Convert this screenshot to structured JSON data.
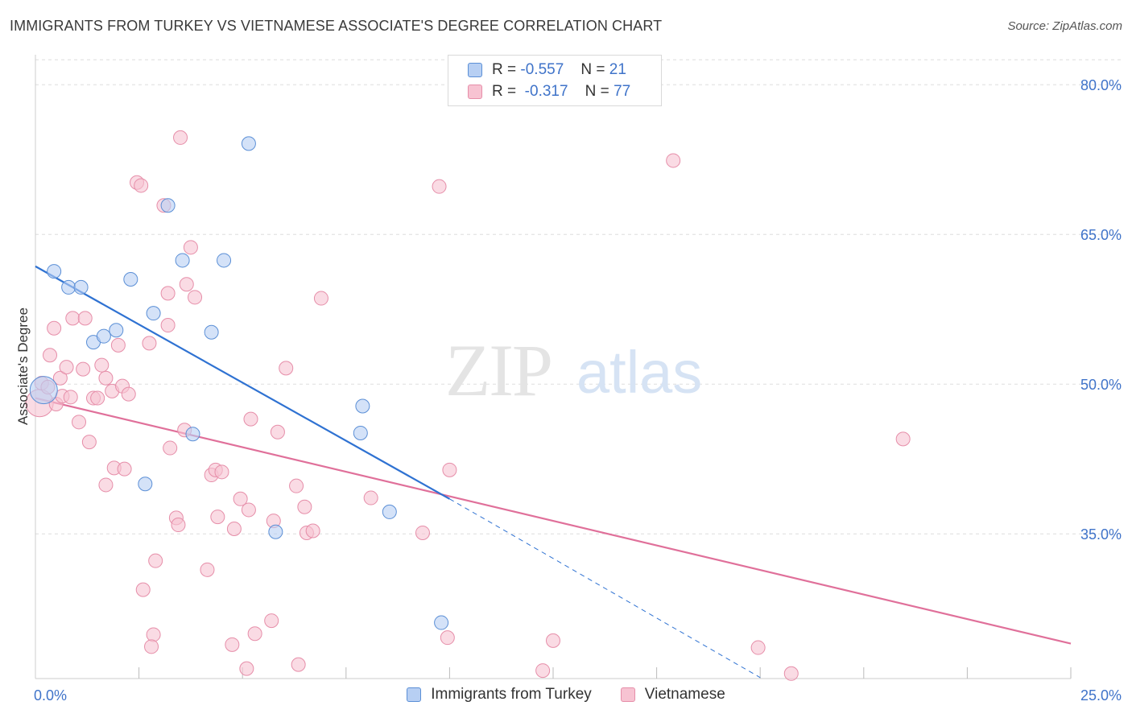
{
  "header": {
    "title": "IMMIGRANTS FROM TURKEY VS VIETNAMESE ASSOCIATE'S DEGREE CORRELATION CHART",
    "source": "Source: ZipAtlas.com"
  },
  "watermark": {
    "zip": "ZIP",
    "atlas": "atlas"
  },
  "colors": {
    "blue_fill": "#b7cff3",
    "blue_stroke": "#5b8fd6",
    "blue_line": "#2f72d2",
    "pink_fill": "#f7c3d2",
    "pink_stroke": "#e68ea9",
    "pink_line": "#e0709a",
    "tick_label": "#3f73c9",
    "grid": "#dedede"
  },
  "legend": {
    "rows": [
      {
        "r_label": "R =",
        "r_value": "-0.557",
        "n_label": "N =",
        "n_value": "21"
      },
      {
        "r_label": "R =",
        "r_value": "-0.317",
        "n_label": "N =",
        "n_value": "77"
      }
    ]
  },
  "chart_data": {
    "type": "scatter",
    "title": "IMMIGRANTS FROM TURKEY VS VIETNAMESE ASSOCIATE'S DEGREE CORRELATION CHART",
    "xlabel": "",
    "ylabel": "Associate's Degree",
    "xlim": [
      0,
      25
    ],
    "ylim": [
      20.5,
      83
    ],
    "x_tick_labels": [
      "0.0%",
      "25.0%"
    ],
    "y_ticks": [
      35,
      50,
      65,
      80
    ],
    "y_tick_labels": [
      "35.0%",
      "50.0%",
      "65.0%",
      "80.0%"
    ],
    "grid": true,
    "legend_position": "top-center",
    "series": [
      {
        "name": "Immigrants from Turkey",
        "color": "#5b8fd6",
        "r": -0.557,
        "n": 21,
        "trend": {
          "x": [
            0.0,
            10.0
          ],
          "y": [
            61.8,
            38.5
          ]
        },
        "trend_dashed": {
          "x": [
            10.0,
            17.5
          ],
          "y": [
            38.5,
            20.6
          ]
        },
        "points": [
          {
            "x": 0.2,
            "y": 49.4,
            "big": true
          },
          {
            "x": 0.45,
            "y": 61.3
          },
          {
            "x": 0.8,
            "y": 59.7
          },
          {
            "x": 1.1,
            "y": 59.7
          },
          {
            "x": 1.4,
            "y": 54.2
          },
          {
            "x": 1.65,
            "y": 54.8
          },
          {
            "x": 1.95,
            "y": 55.4
          },
          {
            "x": 2.3,
            "y": 60.5
          },
          {
            "x": 2.85,
            "y": 57.1
          },
          {
            "x": 3.2,
            "y": 67.9
          },
          {
            "x": 3.55,
            "y": 62.4
          },
          {
            "x": 3.8,
            "y": 45.0
          },
          {
            "x": 4.25,
            "y": 55.2
          },
          {
            "x": 4.55,
            "y": 62.4
          },
          {
            "x": 5.15,
            "y": 74.1
          },
          {
            "x": 5.8,
            "y": 35.2
          },
          {
            "x": 7.85,
            "y": 45.1
          },
          {
            "x": 7.9,
            "y": 47.8
          },
          {
            "x": 8.55,
            "y": 37.2
          },
          {
            "x": 9.8,
            "y": 26.1
          },
          {
            "x": 2.65,
            "y": 40.0
          }
        ]
      },
      {
        "name": "Vietnamese",
        "color": "#e68ea9",
        "r": -0.317,
        "n": 77,
        "trend": {
          "x": [
            0.0,
            25.0
          ],
          "y": [
            48.6,
            24.0
          ]
        },
        "points": [
          {
            "x": 0.1,
            "y": 48.1,
            "big": true
          },
          {
            "x": 0.15,
            "y": 50.1
          },
          {
            "x": 0.3,
            "y": 49.7
          },
          {
            "x": 0.35,
            "y": 52.9
          },
          {
            "x": 0.45,
            "y": 55.6
          },
          {
            "x": 0.5,
            "y": 48.0
          },
          {
            "x": 0.6,
            "y": 50.6
          },
          {
            "x": 0.65,
            "y": 48.8
          },
          {
            "x": 0.75,
            "y": 51.7
          },
          {
            "x": 0.85,
            "y": 48.7
          },
          {
            "x": 0.9,
            "y": 56.6
          },
          {
            "x": 1.05,
            "y": 46.2
          },
          {
            "x": 1.15,
            "y": 51.5
          },
          {
            "x": 1.2,
            "y": 56.6
          },
          {
            "x": 1.3,
            "y": 44.2
          },
          {
            "x": 1.4,
            "y": 48.6
          },
          {
            "x": 1.5,
            "y": 48.6
          },
          {
            "x": 1.6,
            "y": 51.9
          },
          {
            "x": 1.7,
            "y": 50.6
          },
          {
            "x": 1.7,
            "y": 39.9
          },
          {
            "x": 1.85,
            "y": 49.3
          },
          {
            "x": 1.9,
            "y": 41.6
          },
          {
            "x": 2.0,
            "y": 53.9
          },
          {
            "x": 2.1,
            "y": 49.8
          },
          {
            "x": 2.15,
            "y": 41.5
          },
          {
            "x": 2.25,
            "y": 49.0
          },
          {
            "x": 2.45,
            "y": 70.2
          },
          {
            "x": 2.55,
            "y": 69.9
          },
          {
            "x": 2.6,
            "y": 29.4
          },
          {
            "x": 2.75,
            "y": 54.1
          },
          {
            "x": 2.85,
            "y": 24.9
          },
          {
            "x": 2.9,
            "y": 32.3
          },
          {
            "x": 3.1,
            "y": 67.9
          },
          {
            "x": 3.2,
            "y": 59.1
          },
          {
            "x": 3.2,
            "y": 55.9
          },
          {
            "x": 3.25,
            "y": 43.6
          },
          {
            "x": 3.4,
            "y": 36.6
          },
          {
            "x": 3.45,
            "y": 35.9
          },
          {
            "x": 3.5,
            "y": 74.7
          },
          {
            "x": 3.6,
            "y": 45.4
          },
          {
            "x": 3.65,
            "y": 60.0
          },
          {
            "x": 3.75,
            "y": 63.7
          },
          {
            "x": 3.85,
            "y": 58.7
          },
          {
            "x": 4.15,
            "y": 31.4
          },
          {
            "x": 4.25,
            "y": 40.9
          },
          {
            "x": 4.35,
            "y": 41.4
          },
          {
            "x": 4.4,
            "y": 36.7
          },
          {
            "x": 4.5,
            "y": 41.2
          },
          {
            "x": 4.75,
            "y": 23.9
          },
          {
            "x": 4.8,
            "y": 35.5
          },
          {
            "x": 4.95,
            "y": 38.5
          },
          {
            "x": 5.1,
            "y": 21.5
          },
          {
            "x": 5.15,
            "y": 37.4
          },
          {
            "x": 5.2,
            "y": 46.5
          },
          {
            "x": 5.3,
            "y": 25.0
          },
          {
            "x": 5.7,
            "y": 26.3
          },
          {
            "x": 5.75,
            "y": 36.3
          },
          {
            "x": 5.85,
            "y": 45.2
          },
          {
            "x": 6.05,
            "y": 51.6
          },
          {
            "x": 6.3,
            "y": 39.8
          },
          {
            "x": 6.35,
            "y": 21.9
          },
          {
            "x": 6.5,
            "y": 37.7
          },
          {
            "x": 6.55,
            "y": 35.1
          },
          {
            "x": 6.7,
            "y": 35.3
          },
          {
            "x": 6.9,
            "y": 58.6
          },
          {
            "x": 8.1,
            "y": 38.6
          },
          {
            "x": 9.35,
            "y": 35.1
          },
          {
            "x": 9.75,
            "y": 69.8
          },
          {
            "x": 9.95,
            "y": 24.6
          },
          {
            "x": 10.0,
            "y": 41.4
          },
          {
            "x": 12.25,
            "y": 21.3
          },
          {
            "x": 12.5,
            "y": 24.3
          },
          {
            "x": 15.4,
            "y": 72.4
          },
          {
            "x": 17.45,
            "y": 23.6
          },
          {
            "x": 18.25,
            "y": 21.0
          },
          {
            "x": 20.95,
            "y": 44.5
          },
          {
            "x": 2.8,
            "y": 23.7
          }
        ]
      }
    ]
  }
}
